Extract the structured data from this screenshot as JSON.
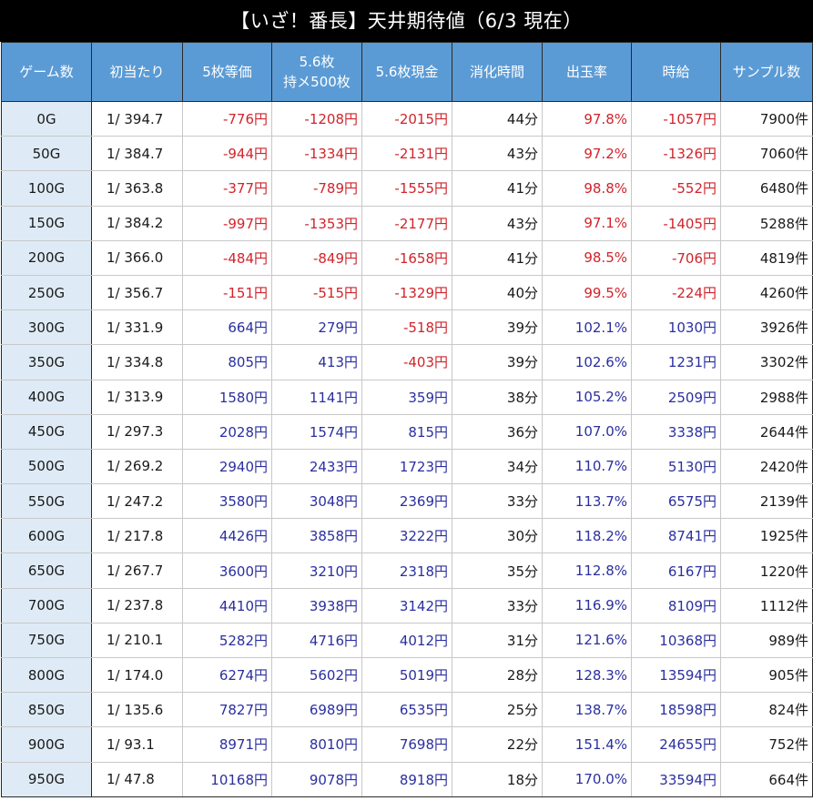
{
  "title": "【いざ！番長】天井期待値（6/3 現在）",
  "headers": {
    "game": "ゲーム数",
    "first_hit": "初当たり",
    "ev5": "5枚等価",
    "ev56_line1": "5.6枚",
    "ev56_line2": "持メ500枚",
    "ev56cash": "5.6枚現金",
    "time": "消化時間",
    "payout": "出玉率",
    "hourly": "時給",
    "samples": "サンプル数"
  },
  "colors": {
    "header_bg": "#5b9bd5",
    "game_col_bg": "#deebf6",
    "negative": "#d0242b",
    "positive": "#2b2fa0"
  },
  "rows": [
    {
      "game": "0G",
      "hit": "1/ 394.7",
      "ev5": "-776円",
      "ev56": "-1208円",
      "cash": "-2015円",
      "time": "44分",
      "rate": "97.8%",
      "hourly": "-1057円",
      "samples": "7900件"
    },
    {
      "game": "50G",
      "hit": "1/ 384.7",
      "ev5": "-944円",
      "ev56": "-1334円",
      "cash": "-2131円",
      "time": "43分",
      "rate": "97.2%",
      "hourly": "-1326円",
      "samples": "7060件"
    },
    {
      "game": "100G",
      "hit": "1/ 363.8",
      "ev5": "-377円",
      "ev56": "-789円",
      "cash": "-1555円",
      "time": "41分",
      "rate": "98.8%",
      "hourly": "-552円",
      "samples": "6480件"
    },
    {
      "game": "150G",
      "hit": "1/ 384.2",
      "ev5": "-997円",
      "ev56": "-1353円",
      "cash": "-2177円",
      "time": "43分",
      "rate": "97.1%",
      "hourly": "-1405円",
      "samples": "5288件"
    },
    {
      "game": "200G",
      "hit": "1/ 366.0",
      "ev5": "-484円",
      "ev56": "-849円",
      "cash": "-1658円",
      "time": "41分",
      "rate": "98.5%",
      "hourly": "-706円",
      "samples": "4819件"
    },
    {
      "game": "250G",
      "hit": "1/ 356.7",
      "ev5": "-151円",
      "ev56": "-515円",
      "cash": "-1329円",
      "time": "40分",
      "rate": "99.5%",
      "hourly": "-224円",
      "samples": "4260件"
    },
    {
      "game": "300G",
      "hit": "1/ 331.9",
      "ev5": "664円",
      "ev56": "279円",
      "cash": "-518円",
      "time": "39分",
      "rate": "102.1%",
      "hourly": "1030円",
      "samples": "3926件"
    },
    {
      "game": "350G",
      "hit": "1/ 334.8",
      "ev5": "805円",
      "ev56": "413円",
      "cash": "-403円",
      "time": "39分",
      "rate": "102.6%",
      "hourly": "1231円",
      "samples": "3302件"
    },
    {
      "game": "400G",
      "hit": "1/ 313.9",
      "ev5": "1580円",
      "ev56": "1141円",
      "cash": "359円",
      "time": "38分",
      "rate": "105.2%",
      "hourly": "2509円",
      "samples": "2988件"
    },
    {
      "game": "450G",
      "hit": "1/ 297.3",
      "ev5": "2028円",
      "ev56": "1574円",
      "cash": "815円",
      "time": "36分",
      "rate": "107.0%",
      "hourly": "3338円",
      "samples": "2644件"
    },
    {
      "game": "500G",
      "hit": "1/ 269.2",
      "ev5": "2940円",
      "ev56": "2433円",
      "cash": "1723円",
      "time": "34分",
      "rate": "110.7%",
      "hourly": "5130円",
      "samples": "2420件"
    },
    {
      "game": "550G",
      "hit": "1/ 247.2",
      "ev5": "3580円",
      "ev56": "3048円",
      "cash": "2369円",
      "time": "33分",
      "rate": "113.7%",
      "hourly": "6575円",
      "samples": "2139件"
    },
    {
      "game": "600G",
      "hit": "1/ 217.8",
      "ev5": "4426円",
      "ev56": "3858円",
      "cash": "3222円",
      "time": "30分",
      "rate": "118.2%",
      "hourly": "8741円",
      "samples": "1925件"
    },
    {
      "game": "650G",
      "hit": "1/ 267.7",
      "ev5": "3600円",
      "ev56": "3210円",
      "cash": "2318円",
      "time": "35分",
      "rate": "112.8%",
      "hourly": "6167円",
      "samples": "1220件"
    },
    {
      "game": "700G",
      "hit": "1/ 237.8",
      "ev5": "4410円",
      "ev56": "3938円",
      "cash": "3142円",
      "time": "33分",
      "rate": "116.9%",
      "hourly": "8109円",
      "samples": "1112件"
    },
    {
      "game": "750G",
      "hit": "1/ 210.1",
      "ev5": "5282円",
      "ev56": "4716円",
      "cash": "4012円",
      "time": "31分",
      "rate": "121.6%",
      "hourly": "10368円",
      "samples": "989件"
    },
    {
      "game": "800G",
      "hit": "1/ 174.0",
      "ev5": "6274円",
      "ev56": "5602円",
      "cash": "5019円",
      "time": "28分",
      "rate": "128.3%",
      "hourly": "13594円",
      "samples": "905件"
    },
    {
      "game": "850G",
      "hit": "1/ 135.6",
      "ev5": "7827円",
      "ev56": "6989円",
      "cash": "6535円",
      "time": "25分",
      "rate": "138.7%",
      "hourly": "18598円",
      "samples": "824件"
    },
    {
      "game": "900G",
      "hit": "1/ 93.1",
      "ev5": "8971円",
      "ev56": "8010円",
      "cash": "7698円",
      "time": "22分",
      "rate": "151.4%",
      "hourly": "24655円",
      "samples": "752件"
    },
    {
      "game": "950G",
      "hit": "1/ 47.8",
      "ev5": "10168円",
      "ev56": "9078円",
      "cash": "8918円",
      "time": "18分",
      "rate": "170.0%",
      "hourly": "33594円",
      "samples": "664件"
    }
  ]
}
